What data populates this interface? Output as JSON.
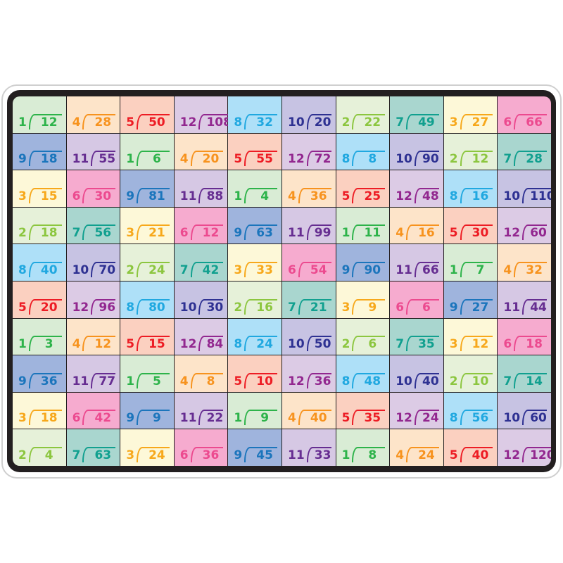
{
  "example_quotient": "12",
  "palette": {
    "1": {
      "bg": "#d9ecd5",
      "fg": "#2db34a"
    },
    "2": {
      "bg": "#e6f1d9",
      "fg": "#8cc63f"
    },
    "3": {
      "bg": "#fdf8d8",
      "fg": "#f7a81b"
    },
    "4": {
      "bg": "#fde4c9",
      "fg": "#f7931e"
    },
    "5": {
      "bg": "#fbd0c0",
      "fg": "#ed1c24"
    },
    "6": {
      "bg": "#f6abcf",
      "fg": "#ec4a8f"
    },
    "7": {
      "bg": "#a9d6cf",
      "fg": "#11a08f"
    },
    "8": {
      "bg": "#aee0f8",
      "fg": "#20a8e0"
    },
    "9": {
      "bg": "#9fb4dd",
      "fg": "#1b75bc"
    },
    "10": {
      "bg": "#c7c3e3",
      "fg": "#2e3192"
    },
    "11": {
      "bg": "#d6c8e4",
      "fg": "#662d91"
    },
    "12": {
      "bg": "#dccbe5",
      "fg": "#92278f"
    }
  },
  "problems": [
    [
      [
        "1",
        "12"
      ],
      [
        "4",
        "28"
      ],
      [
        "5",
        "50"
      ],
      [
        "12",
        "108"
      ],
      [
        "8",
        "32"
      ],
      [
        "10",
        "20"
      ],
      [
        "2",
        "22"
      ],
      [
        "7",
        "49"
      ],
      [
        "3",
        "27"
      ],
      [
        "6",
        "66"
      ]
    ],
    [
      [
        "9",
        "18"
      ],
      [
        "11",
        "55"
      ],
      [
        "1",
        "6"
      ],
      [
        "4",
        "20"
      ],
      [
        "5",
        "55"
      ],
      [
        "12",
        "72"
      ],
      [
        "8",
        "8"
      ],
      [
        "10",
        "90"
      ],
      [
        "2",
        "12"
      ],
      [
        "7",
        "28"
      ]
    ],
    [
      [
        "3",
        "15"
      ],
      [
        "6",
        "30"
      ],
      [
        "9",
        "81"
      ],
      [
        "11",
        "88"
      ],
      [
        "1",
        "4"
      ],
      [
        "4",
        "36"
      ],
      [
        "5",
        "25"
      ],
      [
        "12",
        "48"
      ],
      [
        "8",
        "16"
      ],
      [
        "10",
        "110"
      ]
    ],
    [
      [
        "2",
        "18"
      ],
      [
        "7",
        "56"
      ],
      [
        "3",
        "21"
      ],
      [
        "6",
        "12"
      ],
      [
        "9",
        "63"
      ],
      [
        "11",
        "99"
      ],
      [
        "1",
        "11"
      ],
      [
        "4",
        "16"
      ],
      [
        "5",
        "30"
      ],
      [
        "12",
        "60"
      ]
    ],
    [
      [
        "8",
        "40"
      ],
      [
        "10",
        "70"
      ],
      [
        "2",
        "24"
      ],
      [
        "7",
        "42"
      ],
      [
        "3",
        "33"
      ],
      [
        "6",
        "54"
      ],
      [
        "9",
        "90"
      ],
      [
        "11",
        "66"
      ],
      [
        "1",
        "7"
      ],
      [
        "4",
        "32"
      ]
    ],
    [
      [
        "5",
        "20"
      ],
      [
        "12",
        "96"
      ],
      [
        "8",
        "80"
      ],
      [
        "10",
        "30"
      ],
      [
        "2",
        "16"
      ],
      [
        "7",
        "21"
      ],
      [
        "3",
        "9"
      ],
      [
        "6",
        "6"
      ],
      [
        "9",
        "27"
      ],
      [
        "11",
        "44"
      ]
    ],
    [
      [
        "1",
        "3"
      ],
      [
        "4",
        "12"
      ],
      [
        "5",
        "15"
      ],
      [
        "12",
        "84"
      ],
      [
        "8",
        "24"
      ],
      [
        "10",
        "50"
      ],
      [
        "2",
        "6"
      ],
      [
        "7",
        "35"
      ],
      [
        "3",
        "12"
      ],
      [
        "6",
        "18"
      ]
    ],
    [
      [
        "9",
        "36"
      ],
      [
        "11",
        "77"
      ],
      [
        "1",
        "5"
      ],
      [
        "4",
        "8"
      ],
      [
        "5",
        "10"
      ],
      [
        "12",
        "36"
      ],
      [
        "8",
        "48"
      ],
      [
        "10",
        "40"
      ],
      [
        "2",
        "10"
      ],
      [
        "7",
        "14"
      ]
    ],
    [
      [
        "3",
        "18"
      ],
      [
        "6",
        "42"
      ],
      [
        "9",
        "9"
      ],
      [
        "11",
        "22"
      ],
      [
        "1",
        "9"
      ],
      [
        "4",
        "40"
      ],
      [
        "5",
        "35"
      ],
      [
        "12",
        "24"
      ],
      [
        "8",
        "56"
      ],
      [
        "10",
        "60"
      ]
    ],
    [
      [
        "2",
        "4"
      ],
      [
        "7",
        "63"
      ],
      [
        "3",
        "24"
      ],
      [
        "6",
        "36"
      ],
      [
        "9",
        "45"
      ],
      [
        "11",
        "33"
      ],
      [
        "1",
        "8"
      ],
      [
        "4",
        "24"
      ],
      [
        "5",
        "40"
      ],
      [
        "12",
        "120"
      ]
    ]
  ]
}
